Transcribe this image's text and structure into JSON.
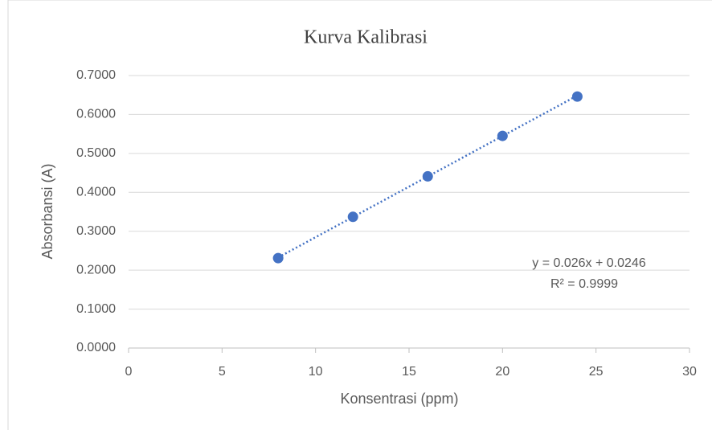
{
  "chart_data": {
    "type": "scatter",
    "title": "Kurva  Kalibrasi",
    "x_label": "Konsentrasi (ppm)",
    "y_label": "Absorbansi (A)",
    "series": [
      {
        "name": "Absorbansi",
        "color": "#4472c4",
        "x": [
          8,
          12,
          16,
          20,
          24
        ],
        "values": [
          0.231,
          0.337,
          0.441,
          0.545,
          0.646
        ]
      }
    ],
    "trendline": {
      "slope": 0.026,
      "intercept": 0.0246,
      "r_squared": 0.9999,
      "equation_label": "y = 0.026x + 0.0246",
      "r2_label": "R² = 0.9999",
      "color": "#4472c4"
    },
    "xlim": [
      0,
      30
    ],
    "xticks": [
      0,
      5,
      10,
      15,
      20,
      25,
      30
    ],
    "ylim": [
      0,
      0.7
    ],
    "yticks": [
      {
        "value": 0,
        "label": "0.0000"
      },
      {
        "value": 0.1,
        "label": "0.1000"
      },
      {
        "value": 0.2,
        "label": "0.2000"
      },
      {
        "value": 0.3,
        "label": "0.3000"
      },
      {
        "value": 0.4,
        "label": "0.4000"
      },
      {
        "value": 0.5,
        "label": "0.5000"
      },
      {
        "value": 0.6,
        "label": "0.6000"
      },
      {
        "value": 0.7,
        "label": "0.7000"
      }
    ],
    "grid": true
  }
}
